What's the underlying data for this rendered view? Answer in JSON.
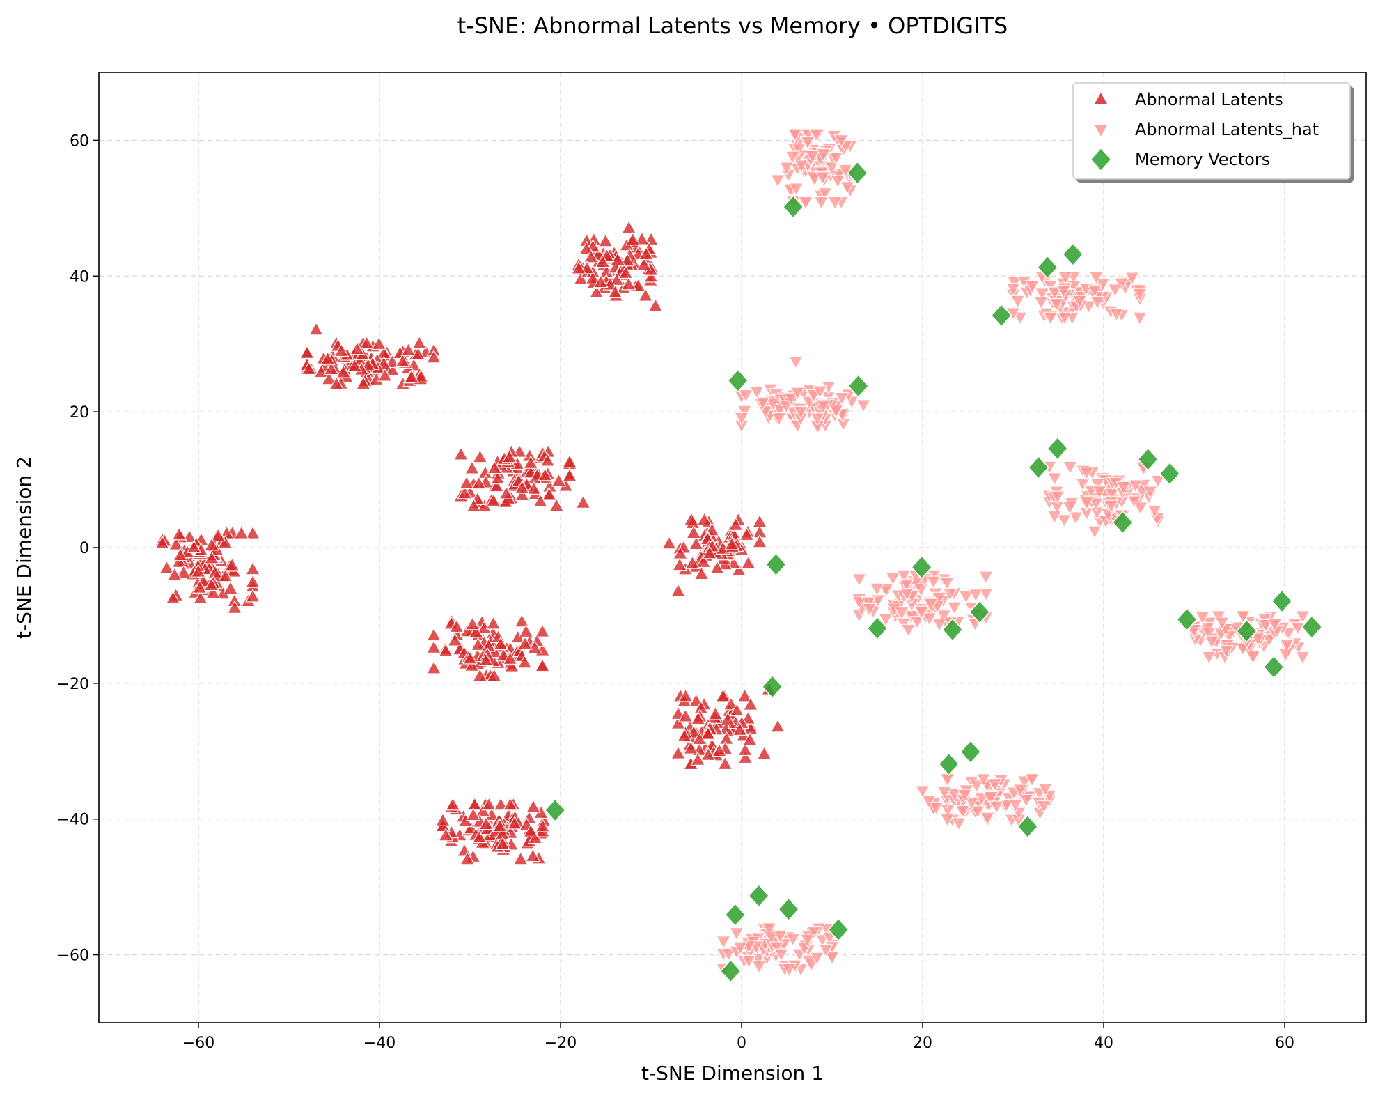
{
  "chart_data": {
    "type": "scatter",
    "title": "t-SNE: Abnormal Latents vs Memory • OPTDIGITS",
    "xlabel": "t-SNE Dimension 1",
    "ylabel": "t-SNE Dimension 2",
    "xlim": [
      -71,
      69
    ],
    "ylim": [
      -70,
      70
    ],
    "xticks": [
      -60,
      -40,
      -20,
      0,
      20,
      40,
      60
    ],
    "yticks": [
      -60,
      -40,
      -20,
      0,
      20,
      40,
      60
    ],
    "xtick_labels": [
      "−60",
      "−40",
      "−20",
      "0",
      "20",
      "40",
      "60"
    ],
    "ytick_labels": [
      "−60",
      "−40",
      "−20",
      "0",
      "20",
      "40",
      "60"
    ],
    "grid": true,
    "legend_position": "top-right",
    "series": [
      {
        "name": "Abnormal Latents",
        "marker": "triangle-up",
        "color": "#d62728",
        "clusters": [
          {
            "center": [
              -59,
              -3
            ],
            "spread": [
              5,
              5
            ],
            "count": 80
          },
          {
            "center": [
              -41,
              27
            ],
            "spread": [
              7,
              3
            ],
            "count": 90
          },
          {
            "center": [
              -14,
              42
            ],
            "spread": [
              4,
              5
            ],
            "count": 75
          },
          {
            "center": [
              -25,
              10
            ],
            "spread": [
              6,
              4
            ],
            "count": 80
          },
          {
            "center": [
              -28,
              -15
            ],
            "spread": [
              6,
              4
            ],
            "count": 80
          },
          {
            "center": [
              -3,
              0
            ],
            "spread": [
              5,
              4
            ],
            "count": 75
          },
          {
            "center": [
              -3,
              -27
            ],
            "spread": [
              4,
              5
            ],
            "count": 70
          },
          {
            "center": [
              -27,
              -42
            ],
            "spread": [
              6,
              4
            ],
            "count": 85
          }
        ],
        "points": [
          [
            -17.5,
            6.5
          ],
          [
            -9.5,
            35.5
          ],
          [
            -47,
            32
          ],
          [
            3,
            -21
          ],
          [
            2.5,
            -30.5
          ],
          [
            4,
            -26.5
          ],
          [
            -56,
            -9
          ],
          [
            -7,
            -6.5
          ]
        ]
      },
      {
        "name": "Abnormal Latents_hat",
        "marker": "triangle-down",
        "color": "#ff9896",
        "clusters": [
          {
            "center": [
              8,
              56
            ],
            "spread": [
              4,
              5
            ],
            "count": 80
          },
          {
            "center": [
              37,
              37
            ],
            "spread": [
              7,
              3
            ],
            "count": 85
          },
          {
            "center": [
              7,
              21
            ],
            "spread": [
              7,
              3
            ],
            "count": 80
          },
          {
            "center": [
              40,
              8
            ],
            "spread": [
              6,
              4
            ],
            "count": 80
          },
          {
            "center": [
              20,
              -8
            ],
            "spread": [
              7,
              4
            ],
            "count": 90
          },
          {
            "center": [
              56,
              -13
            ],
            "spread": [
              6,
              3
            ],
            "count": 80
          },
          {
            "center": [
              27,
              -37
            ],
            "spread": [
              7,
              3
            ],
            "count": 80
          },
          {
            "center": [
              4,
              -59
            ],
            "spread": [
              6,
              3
            ],
            "count": 80
          }
        ],
        "points": [
          [
            6,
            27.5
          ],
          [
            39,
            2.5
          ],
          [
            24,
            -40.5
          ]
        ]
      },
      {
        "name": "Memory Vectors",
        "marker": "diamond",
        "color": "#2ca02c",
        "points": [
          [
            12.8,
            55.2
          ],
          [
            5.7,
            50.2
          ],
          [
            -0.4,
            24.6
          ],
          [
            12.9,
            23.8
          ],
          [
            33.8,
            41.3
          ],
          [
            36.6,
            43.2
          ],
          [
            28.7,
            34.2
          ],
          [
            32.8,
            11.8
          ],
          [
            34.9,
            14.6
          ],
          [
            44.9,
            13.0
          ],
          [
            47.3,
            10.9
          ],
          [
            42.1,
            3.7
          ],
          [
            3.8,
            -2.5
          ],
          [
            19.9,
            -2.9
          ],
          [
            15.0,
            -11.9
          ],
          [
            23.3,
            -12.1
          ],
          [
            26.3,
            -9.5
          ],
          [
            49.2,
            -10.6
          ],
          [
            55.8,
            -12.3
          ],
          [
            59.7,
            -7.9
          ],
          [
            63.0,
            -11.7
          ],
          [
            58.8,
            -17.6
          ],
          [
            3.4,
            -20.5
          ],
          [
            -20.6,
            -38.7
          ],
          [
            22.9,
            -31.9
          ],
          [
            25.3,
            -30.1
          ],
          [
            31.6,
            -41.1
          ],
          [
            -0.7,
            -54.1
          ],
          [
            1.9,
            -51.3
          ],
          [
            5.2,
            -53.3
          ],
          [
            10.7,
            -56.3
          ],
          [
            -1.2,
            -62.4
          ]
        ]
      }
    ]
  }
}
